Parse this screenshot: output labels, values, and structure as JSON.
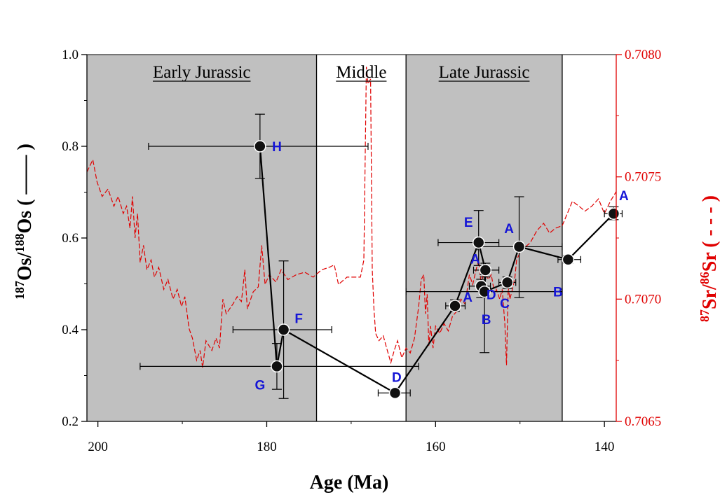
{
  "chart_data": {
    "type": "scatter",
    "xlabel": "Age (Ma)",
    "ylabel": {
      "sup1": "187",
      "base1": "Os/",
      "sup2": "188",
      "base2": "Os",
      "suffix": " ( —— )"
    },
    "y2label": {
      "sup1": "87",
      "base1": "Sr/",
      "sup2": "86",
      "base2": "Sr",
      "suffix": " ( - - - )"
    },
    "xlim": [
      201.3,
      138.6
    ],
    "ylim": [
      0.2,
      1.0
    ],
    "y2lim": [
      0.7065,
      0.708
    ],
    "x_ticks": [
      200,
      180,
      160,
      140
    ],
    "y_ticks": [
      0.2,
      0.4,
      0.6,
      0.8,
      1.0
    ],
    "y_tick_labels": [
      "0.2",
      "0.4",
      "0.6",
      "0.8",
      "1.0"
    ],
    "y2_ticks": [
      0.7065,
      0.707,
      0.7075,
      0.708
    ],
    "y2_tick_labels": [
      "0.7065",
      "0.7070",
      "0.7075",
      "0.7080"
    ],
    "periods": [
      {
        "label": "Early Jurassic",
        "x_start": 201.3,
        "x_end": 174.1,
        "shaded": true
      },
      {
        "label": "Middle",
        "x_start": 174.1,
        "x_end": 163.5,
        "shaded": false
      },
      {
        "label": "Late Jurassic",
        "x_start": 163.5,
        "x_end": 145.0,
        "shaded": true
      }
    ],
    "os_points": [
      {
        "label": "H",
        "x": 180.8,
        "y": 0.8,
        "xerr_lo": 194.0,
        "xerr_hi": 168.0,
        "yerr_lo": 0.73,
        "yerr_hi": 0.87,
        "lx": 2.0,
        "ly": 0.0
      },
      {
        "label": "G",
        "x": 178.8,
        "y": 0.32,
        "xerr_lo": 195.0,
        "xerr_hi": 162.0,
        "yerr_lo": 0.27,
        "yerr_hi": 0.37,
        "lx": -2.0,
        "ly": -0.04
      },
      {
        "label": "F",
        "x": 178.0,
        "y": 0.4,
        "xerr_lo": 184.0,
        "xerr_hi": 172.3,
        "yerr_lo": 0.25,
        "yerr_hi": 0.55,
        "lx": 1.8,
        "ly": 0.025
      },
      {
        "label": "D",
        "x": 164.8,
        "y": 0.262,
        "xerr_lo": 166.8,
        "xerr_hi": 163.0,
        "yerr_lo": 0.255,
        "yerr_hi": 0.27,
        "lx": 0.2,
        "ly": 0.035
      },
      {
        "label": "A",
        "x": 157.7,
        "y": 0.452,
        "xerr_lo": 158.8,
        "xerr_hi": 156.5,
        "yerr_lo": 0.44,
        "yerr_hi": 0.465,
        "lx": 1.5,
        "ly": 0.02
      },
      {
        "label": "D",
        "x": 154.6,
        "y": 0.495,
        "xerr_lo": 156.0,
        "xerr_hi": 153.5,
        "yerr_lo": 0.47,
        "yerr_hi": 0.51,
        "lx": 1.2,
        "ly": -0.018
      },
      {
        "label": "B",
        "x": 154.2,
        "y": 0.483,
        "xerr_lo": 163.5,
        "xerr_hi": 145.0,
        "yerr_lo": 0.35,
        "yerr_hi": 0.52,
        "lx": 0.2,
        "ly": -0.06
      },
      {
        "label": "A",
        "x": 154.1,
        "y": 0.53,
        "xerr_lo": 155.5,
        "xerr_hi": 152.5,
        "yerr_lo": 0.515,
        "yerr_hi": 0.545,
        "lx": -1.2,
        "ly": 0.025
      },
      {
        "label": "E",
        "x": 154.9,
        "y": 0.59,
        "xerr_lo": 159.7,
        "xerr_hi": 152.5,
        "yerr_lo": 0.54,
        "yerr_hi": 0.66,
        "lx": -1.2,
        "ly": 0.045
      },
      {
        "label": "C",
        "x": 151.5,
        "y": 0.503,
        "xerr_lo": 152.5,
        "xerr_hi": 150.5,
        "yerr_lo": 0.49,
        "yerr_hi": 0.515,
        "lx": -0.3,
        "ly": -0.045
      },
      {
        "label": "A",
        "x": 150.1,
        "y": 0.581,
        "xerr_lo": 155.0,
        "xerr_hi": 145.0,
        "yerr_lo": 0.47,
        "yerr_hi": 0.69,
        "lx": -1.2,
        "ly": 0.04
      },
      {
        "label": "B",
        "x": 144.3,
        "y": 0.553,
        "xerr_lo": 145.5,
        "xerr_hi": 142.8,
        "yerr_lo": 0.545,
        "yerr_hi": 0.562,
        "lx": -1.2,
        "ly": -0.07
      },
      {
        "label": "A",
        "x": 138.9,
        "y": 0.653,
        "xerr_lo": 140.0,
        "xerr_hi": 137.9,
        "yerr_lo": 0.64,
        "yerr_hi": 0.668,
        "lx": 1.2,
        "ly": 0.04
      }
    ],
    "os_line_order": [
      0,
      1,
      2,
      3,
      4,
      8,
      7,
      6,
      9,
      10,
      11,
      12
    ],
    "sr_curve": [
      [
        201.3,
        0.70752
      ],
      [
        200.6,
        0.70757
      ],
      [
        200.1,
        0.70748
      ],
      [
        199.5,
        0.70742
      ],
      [
        198.8,
        0.70745
      ],
      [
        198.1,
        0.70738
      ],
      [
        197.6,
        0.70742
      ],
      [
        197.0,
        0.70735
      ],
      [
        196.6,
        0.70738
      ],
      [
        196.2,
        0.70729
      ],
      [
        195.9,
        0.70742
      ],
      [
        195.6,
        0.70725
      ],
      [
        195.3,
        0.70735
      ],
      [
        195.0,
        0.70715
      ],
      [
        194.6,
        0.70722
      ],
      [
        194.2,
        0.70712
      ],
      [
        193.7,
        0.70716
      ],
      [
        193.3,
        0.70709
      ],
      [
        192.8,
        0.70713
      ],
      [
        192.2,
        0.70704
      ],
      [
        191.7,
        0.70708
      ],
      [
        191.1,
        0.707
      ],
      [
        190.6,
        0.70704
      ],
      [
        190.1,
        0.70697
      ],
      [
        189.7,
        0.70701
      ],
      [
        189.2,
        0.70688
      ],
      [
        188.8,
        0.70684
      ],
      [
        188.3,
        0.70675
      ],
      [
        187.9,
        0.70679
      ],
      [
        187.6,
        0.70672
      ],
      [
        187.2,
        0.70683
      ],
      [
        186.5,
        0.70679
      ],
      [
        186.0,
        0.70684
      ],
      [
        185.6,
        0.7068
      ],
      [
        185.2,
        0.707
      ],
      [
        184.8,
        0.70694
      ],
      [
        184.0,
        0.70698
      ],
      [
        183.5,
        0.70701
      ],
      [
        183.0,
        0.70699
      ],
      [
        182.6,
        0.70712
      ],
      [
        182.3,
        0.70696
      ],
      [
        181.6,
        0.70703
      ],
      [
        181.0,
        0.70705
      ],
      [
        180.6,
        0.70722
      ],
      [
        180.2,
        0.70706
      ],
      [
        179.7,
        0.7071
      ],
      [
        178.9,
        0.70707
      ],
      [
        178.3,
        0.70712
      ],
      [
        177.5,
        0.70708
      ],
      [
        176.5,
        0.7071
      ],
      [
        175.5,
        0.70711
      ],
      [
        174.5,
        0.70709
      ],
      [
        173.5,
        0.70712
      ],
      [
        172.6,
        0.70713
      ],
      [
        172.0,
        0.70714
      ],
      [
        171.5,
        0.70706
      ],
      [
        170.5,
        0.70709
      ],
      [
        169.3,
        0.70709
      ],
      [
        168.9,
        0.70709
      ],
      [
        168.5,
        0.70716
      ],
      [
        168.2,
        0.70795
      ],
      [
        168.0,
        0.70788
      ],
      [
        167.7,
        0.7079
      ],
      [
        167.5,
        0.70712
      ],
      [
        167.3,
        0.70696
      ],
      [
        167.1,
        0.70686
      ],
      [
        166.7,
        0.70683
      ],
      [
        166.2,
        0.70685
      ],
      [
        165.8,
        0.7068
      ],
      [
        165.3,
        0.70674
      ],
      [
        164.9,
        0.70679
      ],
      [
        164.5,
        0.70683
      ],
      [
        164.0,
        0.70676
      ],
      [
        163.5,
        0.7068
      ],
      [
        163.0,
        0.70678
      ],
      [
        162.5,
        0.70684
      ],
      [
        162.0,
        0.70697
      ],
      [
        161.7,
        0.70708
      ],
      [
        161.4,
        0.7071
      ],
      [
        161.2,
        0.70694
      ],
      [
        161.0,
        0.70702
      ],
      [
        160.8,
        0.70681
      ],
      [
        160.6,
        0.70689
      ],
      [
        160.3,
        0.7068
      ],
      [
        160.0,
        0.70689
      ],
      [
        159.5,
        0.70686
      ],
      [
        159.0,
        0.7069
      ],
      [
        158.5,
        0.70687
      ],
      [
        158.0,
        0.70693
      ],
      [
        157.5,
        0.70695
      ],
      [
        157.0,
        0.707
      ],
      [
        156.5,
        0.70698
      ],
      [
        156.0,
        0.7071
      ],
      [
        155.6,
        0.70706
      ],
      [
        155.2,
        0.70712
      ],
      [
        154.9,
        0.70716
      ],
      [
        154.6,
        0.70706
      ],
      [
        154.2,
        0.70712
      ],
      [
        153.8,
        0.70708
      ],
      [
        153.4,
        0.7071
      ],
      [
        153.0,
        0.70702
      ],
      [
        152.8,
        0.70704
      ],
      [
        152.4,
        0.707
      ],
      [
        152.1,
        0.70704
      ],
      [
        151.8,
        0.7069
      ],
      [
        151.6,
        0.70673
      ],
      [
        151.4,
        0.70705
      ],
      [
        151.2,
        0.707
      ],
      [
        150.9,
        0.70704
      ],
      [
        150.6,
        0.70709
      ],
      [
        150.4,
        0.70716
      ],
      [
        150.0,
        0.70719
      ],
      [
        149.5,
        0.70721
      ],
      [
        148.8,
        0.70723
      ],
      [
        148.0,
        0.70728
      ],
      [
        147.2,
        0.70731
      ],
      [
        146.5,
        0.70727
      ],
      [
        145.8,
        0.70729
      ],
      [
        145.0,
        0.7073
      ],
      [
        144.4,
        0.70735
      ],
      [
        143.8,
        0.7074
      ],
      [
        143.0,
        0.70738
      ],
      [
        142.3,
        0.70736
      ],
      [
        141.5,
        0.70738
      ],
      [
        140.7,
        0.70741
      ],
      [
        140.0,
        0.70735
      ],
      [
        139.3,
        0.7074
      ],
      [
        138.6,
        0.70744
      ]
    ]
  },
  "colors": {
    "shade": "#c0c0c0",
    "sr_curve": "#e00000",
    "right_axis": "#e00000",
    "point_label": "#1515d6",
    "os_line": "#000000"
  }
}
